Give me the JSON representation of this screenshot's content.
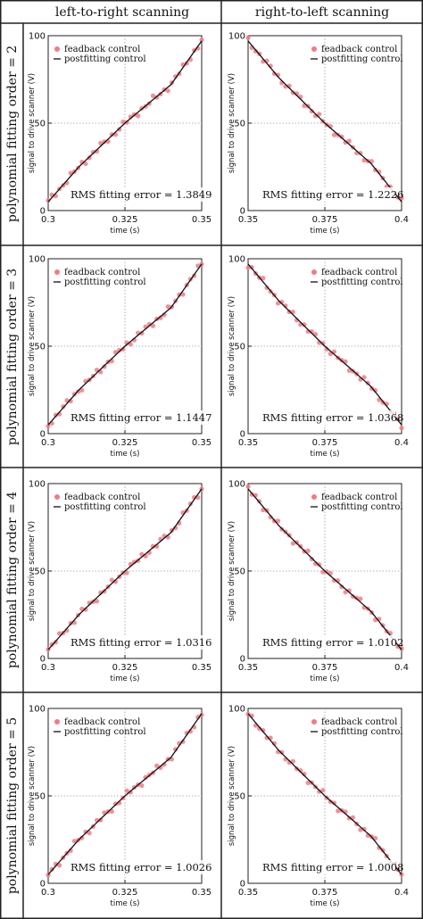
{
  "figure": {
    "column_headers": [
      "left-to-right scanning",
      "right-to-left scanning"
    ],
    "row_headers": [
      "polynomial fitting order = 2",
      "polynomial fitting order = 3",
      "polynomial fitting order = 4",
      "polynomial fitting order = 5"
    ]
  },
  "colors": {
    "feedback": "#ef7c86",
    "postfitting": "#111111",
    "grid": "#9a9a9a",
    "frame": "#222222"
  },
  "chart_data": [
    {
      "type": "scatter",
      "row": 0,
      "col": 0,
      "xlim": [
        0.3,
        0.35
      ],
      "ylim": [
        0,
        100
      ],
      "xticks": [
        "0.3",
        "0.325",
        "0.35"
      ],
      "yticks": [
        "0",
        "50",
        "100"
      ],
      "xlabel": "time (s)",
      "ylabel": "signal to drive scanner (V)",
      "legend": [
        "feadback control",
        "postfitting control"
      ],
      "legend_position": "top-left",
      "grid": "dotted",
      "annotation": "RMS fitting error = 1.3849",
      "series": [
        {
          "name": "feadback control",
          "kind": "points",
          "x": [
            0.3,
            0.31,
            0.325,
            0.34,
            0.35
          ],
          "y": [
            5,
            25,
            50,
            72,
            97
          ]
        },
        {
          "name": "postfitting control",
          "kind": "line",
          "x": [
            0.3,
            0.31,
            0.325,
            0.34,
            0.35
          ],
          "y": [
            5,
            25,
            50,
            72,
            97
          ]
        }
      ]
    },
    {
      "type": "scatter",
      "row": 0,
      "col": 1,
      "xlim": [
        0.35,
        0.4
      ],
      "ylim": [
        0,
        100
      ],
      "xticks": [
        "0.35",
        "0.375",
        "0.4"
      ],
      "yticks": [
        "0",
        "50",
        "100"
      ],
      "xlabel": "time (s)",
      "ylabel": "signal to drive scanner (V)",
      "legend": [
        "feadback control",
        "postfitting control"
      ],
      "legend_position": "top-right",
      "grid": "dotted",
      "annotation": "RMS fitting error = 1.2226",
      "series": [
        {
          "name": "feadback control",
          "kind": "points",
          "x": [
            0.35,
            0.36,
            0.375,
            0.39,
            0.4
          ],
          "y": [
            97,
            76,
            50,
            27,
            5
          ]
        },
        {
          "name": "postfitting control",
          "kind": "line",
          "x": [
            0.35,
            0.36,
            0.375,
            0.39,
            0.4
          ],
          "y": [
            97,
            76,
            50,
            27,
            5
          ]
        }
      ]
    },
    {
      "type": "scatter",
      "row": 1,
      "col": 0,
      "xlim": [
        0.3,
        0.35
      ],
      "ylim": [
        0,
        100
      ],
      "xticks": [
        "0.3",
        "0.325",
        "0.35"
      ],
      "yticks": [
        "0",
        "50",
        "100"
      ],
      "xlabel": "time (s)",
      "ylabel": "signal to drive scanner (V)",
      "legend": [
        "feadback control",
        "postfitting control"
      ],
      "legend_position": "top-left",
      "grid": "dotted",
      "annotation": "RMS fitting error = 1.1447",
      "series": [
        {
          "name": "feadback control",
          "kind": "points",
          "x": [
            0.3,
            0.31,
            0.325,
            0.34,
            0.35
          ],
          "y": [
            5,
            25,
            50,
            72,
            97
          ]
        },
        {
          "name": "postfitting control",
          "kind": "line",
          "x": [
            0.3,
            0.31,
            0.325,
            0.34,
            0.35
          ],
          "y": [
            5,
            25,
            50,
            72,
            97
          ]
        }
      ]
    },
    {
      "type": "scatter",
      "row": 1,
      "col": 1,
      "xlim": [
        0.35,
        0.4
      ],
      "ylim": [
        0,
        100
      ],
      "xticks": [
        "0.35",
        "0.375",
        "0.4"
      ],
      "yticks": [
        "0",
        "50",
        "100"
      ],
      "xlabel": "time (s)",
      "ylabel": "signal to drive scanner (V)",
      "legend": [
        "feadback control",
        "postfitting control"
      ],
      "legend_position": "top-right",
      "grid": "dotted",
      "annotation": "RMS fitting error = 1.0368",
      "series": [
        {
          "name": "feadback control",
          "kind": "points",
          "x": [
            0.35,
            0.36,
            0.375,
            0.39,
            0.4
          ],
          "y": [
            97,
            76,
            50,
            27,
            5
          ]
        },
        {
          "name": "postfitting control",
          "kind": "line",
          "x": [
            0.35,
            0.36,
            0.375,
            0.39,
            0.4
          ],
          "y": [
            97,
            76,
            50,
            27,
            5
          ]
        }
      ]
    },
    {
      "type": "scatter",
      "row": 2,
      "col": 0,
      "xlim": [
        0.3,
        0.35
      ],
      "ylim": [
        0,
        100
      ],
      "xticks": [
        "0.3",
        "0.325",
        "0.35"
      ],
      "yticks": [
        "0",
        "50",
        "100"
      ],
      "xlabel": "time (s)",
      "ylabel": "signal to drive scanner (V)",
      "legend": [
        "feadback control",
        "postfitting control"
      ],
      "legend_position": "top-left",
      "grid": "dotted",
      "annotation": "RMS fitting error = 1.0316",
      "series": [
        {
          "name": "feadback control",
          "kind": "points",
          "x": [
            0.3,
            0.31,
            0.325,
            0.34,
            0.35
          ],
          "y": [
            5,
            25,
            50,
            72,
            97
          ]
        },
        {
          "name": "postfitting control",
          "kind": "line",
          "x": [
            0.3,
            0.31,
            0.325,
            0.34,
            0.35
          ],
          "y": [
            5,
            25,
            50,
            72,
            97
          ]
        }
      ]
    },
    {
      "type": "scatter",
      "row": 2,
      "col": 1,
      "xlim": [
        0.35,
        0.4
      ],
      "ylim": [
        0,
        100
      ],
      "xticks": [
        "0.35",
        "0.375",
        "0.4"
      ],
      "yticks": [
        "0",
        "50",
        "100"
      ],
      "xlabel": "time (s)",
      "ylabel": "signal to drive scanner (V)",
      "legend": [
        "feadback control",
        "postfitting control"
      ],
      "legend_position": "top-right",
      "grid": "dotted",
      "annotation": "RMS fitting error = 1.0102",
      "series": [
        {
          "name": "feadback control",
          "kind": "points",
          "x": [
            0.35,
            0.36,
            0.375,
            0.39,
            0.4
          ],
          "y": [
            97,
            76,
            50,
            27,
            5
          ]
        },
        {
          "name": "postfitting control",
          "kind": "line",
          "x": [
            0.35,
            0.36,
            0.375,
            0.39,
            0.4
          ],
          "y": [
            97,
            76,
            50,
            27,
            5
          ]
        }
      ]
    },
    {
      "type": "scatter",
      "row": 3,
      "col": 0,
      "xlim": [
        0.3,
        0.35
      ],
      "ylim": [
        0,
        100
      ],
      "xticks": [
        "0.3",
        "0.325",
        "0.35"
      ],
      "yticks": [
        "0",
        "50",
        "100"
      ],
      "xlabel": "time (s)",
      "ylabel": "signal to drive scanner (V)",
      "legend": [
        "feadback control",
        "postfitting control"
      ],
      "legend_position": "top-left",
      "grid": "dotted",
      "annotation": "RMS fitting error = 1.0026",
      "series": [
        {
          "name": "feadback control",
          "kind": "points",
          "x": [
            0.3,
            0.31,
            0.325,
            0.34,
            0.35
          ],
          "y": [
            5,
            25,
            50,
            72,
            97
          ]
        },
        {
          "name": "postfitting control",
          "kind": "line",
          "x": [
            0.3,
            0.31,
            0.325,
            0.34,
            0.35
          ],
          "y": [
            5,
            25,
            50,
            72,
            97
          ]
        }
      ]
    },
    {
      "type": "scatter",
      "row": 3,
      "col": 1,
      "xlim": [
        0.35,
        0.4
      ],
      "ylim": [
        0,
        100
      ],
      "xticks": [
        "0.35",
        "0.375",
        "0.4"
      ],
      "yticks": [
        "0",
        "50",
        "100"
      ],
      "xlabel": "time (s)",
      "ylabel": "signal to drive scanner (V)",
      "legend": [
        "feadback control",
        "postfitting control"
      ],
      "legend_position": "top-right",
      "grid": "dotted",
      "annotation": "RMS fitting error = 1.0008",
      "series": [
        {
          "name": "feadback control",
          "kind": "points",
          "x": [
            0.35,
            0.36,
            0.375,
            0.39,
            0.4
          ],
          "y": [
            97,
            76,
            50,
            27,
            5
          ]
        },
        {
          "name": "postfitting control",
          "kind": "line",
          "x": [
            0.35,
            0.36,
            0.375,
            0.39,
            0.4
          ],
          "y": [
            97,
            76,
            50,
            27,
            5
          ]
        }
      ]
    }
  ]
}
